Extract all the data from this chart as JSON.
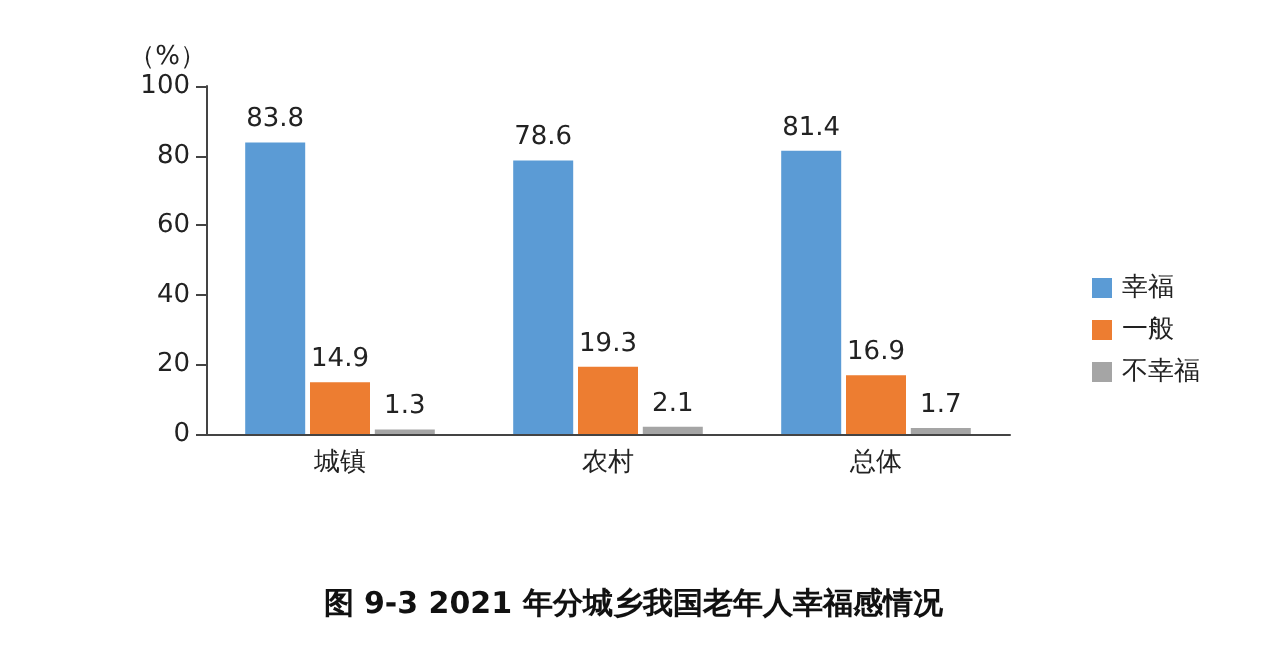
{
  "chart_data": {
    "type": "bar",
    "title": "图 9-3 2021 年分城乡我国老年人幸福感情况",
    "ylabel": "（%）",
    "categories": [
      "城镇",
      "农村",
      "总体"
    ],
    "series": [
      {
        "name": "幸福",
        "color": "#5b9bd5",
        "values": [
          83.8,
          78.6,
          81.4
        ]
      },
      {
        "name": "一般",
        "color": "#ed7d31",
        "values": [
          14.9,
          19.3,
          16.9
        ]
      },
      {
        "name": "不幸福",
        "color": "#a5a5a5",
        "values": [
          1.3,
          2.1,
          1.7
        ]
      }
    ],
    "ylim": [
      0,
      100
    ],
    "yticks": [
      0,
      20,
      40,
      60,
      80,
      100
    ],
    "grid": false,
    "legend": "right",
    "data_labels": true
  }
}
